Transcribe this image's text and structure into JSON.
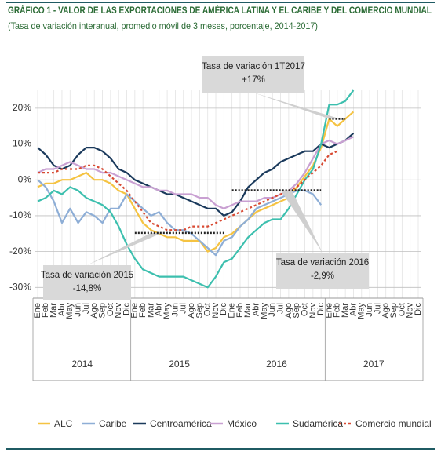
{
  "chart_data": {
    "type": "line",
    "title": "GRÁFICO 1 - VALOR DE LAS EXPORTACIONES DE AMÉRICA LATINA Y EL CARIBE Y DEL COMERCIO MUNDIAL",
    "subtitle": "(Tasa de variación interanual, promedio móvil de 3 meses, porcentaje, 2014-2017)",
    "categories": [
      "Ene",
      "Feb",
      "Mar",
      "Abr",
      "May",
      "Jun",
      "Jul",
      "Ago",
      "Sep",
      "Oct",
      "Nov",
      "Dic",
      "Ene",
      "Feb",
      "Mar",
      "Abr",
      "May",
      "Jun",
      "Jul",
      "Ago",
      "Sep",
      "Oct",
      "Nov",
      "Dic",
      "Ene",
      "Feb",
      "Mar",
      "Abr",
      "May",
      "Jun",
      "Jul",
      "Ago",
      "Sep",
      "Oct",
      "Nov",
      "Dic",
      "Ene",
      "Feb",
      "Mar",
      "Abr",
      "May",
      "Jun",
      "Jul",
      "Ago",
      "Sep",
      "Oct",
      "Nov",
      "Dic"
    ],
    "years": [
      "2014",
      "2015",
      "2016",
      "2017"
    ],
    "ylim": [
      -33,
      25
    ],
    "yticks": [
      {
        "value": 20,
        "label": "20%"
      },
      {
        "value": 10,
        "label": "10%"
      },
      {
        "value": 0,
        "label": "0%"
      },
      {
        "value": -10,
        "label": "-10%"
      },
      {
        "value": -20,
        "label": "-20%"
      },
      {
        "value": -30,
        "label": "-30%"
      }
    ],
    "grid": true,
    "series": [
      {
        "name": "ALC",
        "color": "#f5c342",
        "dash": false,
        "values": [
          -2,
          -1,
          -1,
          0,
          0,
          1,
          2,
          0,
          0,
          -1,
          -3,
          -4,
          -8,
          -12,
          -14,
          -15,
          -16,
          -16,
          -17,
          -17,
          -17,
          -20,
          -19,
          -16,
          -15,
          -13,
          -11,
          -9,
          -8,
          -7,
          -6,
          -5,
          -2,
          1,
          4,
          9,
          17,
          15,
          17,
          19,
          null,
          null,
          null,
          null,
          null,
          null,
          null,
          null
        ]
      },
      {
        "name": "Caribe",
        "color": "#8eaed6",
        "dash": false,
        "values": [
          0,
          -2,
          -6,
          -12,
          -8,
          -12,
          -9,
          -10,
          -12,
          -8,
          -8,
          -4,
          -6,
          -8,
          -10,
          -9,
          -12,
          -14,
          -14,
          -15,
          -17,
          -19,
          -21,
          -17,
          -16,
          -13,
          -11,
          -8,
          -7,
          -6,
          -5,
          -4,
          -3,
          -3,
          -4,
          -7,
          null,
          null,
          null,
          null,
          null,
          null,
          null,
          null,
          null,
          null,
          null,
          null
        ]
      },
      {
        "name": "Centroamérica",
        "color": "#1b3a5c",
        "dash": false,
        "values": [
          9,
          7,
          4,
          3,
          4,
          7,
          9,
          9,
          8,
          6,
          3,
          2,
          0,
          -1,
          -2,
          -3,
          -4,
          -4,
          -5,
          -6,
          -7,
          -8,
          -8,
          -10,
          -9,
          -6,
          -2,
          0,
          2,
          3,
          5,
          6,
          7,
          8,
          8,
          10,
          9,
          10,
          11,
          13,
          null,
          null,
          null,
          null,
          null,
          null,
          null,
          null
        ]
      },
      {
        "name": "México",
        "color": "#c9a0d2",
        "dash": false,
        "values": [
          2,
          3,
          3,
          4,
          5,
          4,
          3,
          3,
          2,
          2,
          1,
          0,
          -1,
          -2,
          -2,
          -3,
          -3,
          -4,
          -4,
          -4,
          -5,
          -5,
          -7,
          -8,
          -7,
          -6,
          -6,
          -6,
          -5,
          -5,
          -4,
          -3,
          -1,
          2,
          6,
          10,
          11,
          10,
          11,
          12,
          null,
          null,
          null,
          null,
          null,
          null,
          null,
          null
        ]
      },
      {
        "name": "Sudamérica",
        "color": "#3cbfae",
        "dash": false,
        "values": [
          -6,
          -5,
          -3,
          -4,
          -2,
          -3,
          -5,
          -6,
          -7,
          -9,
          -13,
          -18,
          -22,
          -25,
          -26,
          -27,
          -27,
          -27,
          -27,
          -28,
          -29,
          -30,
          -27,
          -23,
          -22,
          -19,
          -16,
          -14,
          -12,
          -11,
          -11,
          -8,
          -4,
          0,
          3,
          10,
          21,
          21,
          22,
          25,
          null,
          null,
          null,
          null,
          null,
          null,
          null,
          null
        ]
      },
      {
        "name": "Comercio mundial",
        "color": "#d84a33",
        "dash": true,
        "values": [
          2,
          2,
          2,
          3,
          3,
          3,
          4,
          4,
          3,
          1,
          -1,
          -3,
          -6,
          -9,
          -12,
          -13,
          -14,
          -14,
          -14,
          -13,
          -13,
          -13,
          -12,
          -11,
          -10,
          -9,
          -8,
          -7,
          -6,
          -5,
          -4,
          -3,
          -2,
          0,
          2,
          4,
          7,
          8,
          null,
          null,
          null,
          null,
          null,
          null,
          null,
          null,
          null,
          null
        ]
      }
    ],
    "annotations": [
      {
        "lines": [
          "Tasa de variación 1T2017",
          "+17%"
        ],
        "value": 17
      },
      {
        "lines": [
          "Tasa de variación 2015",
          "-14,8%"
        ],
        "value": -14.8
      },
      {
        "lines": [
          "Tasa de variación 2016",
          "-2,9%"
        ],
        "value": -2.9
      }
    ]
  }
}
